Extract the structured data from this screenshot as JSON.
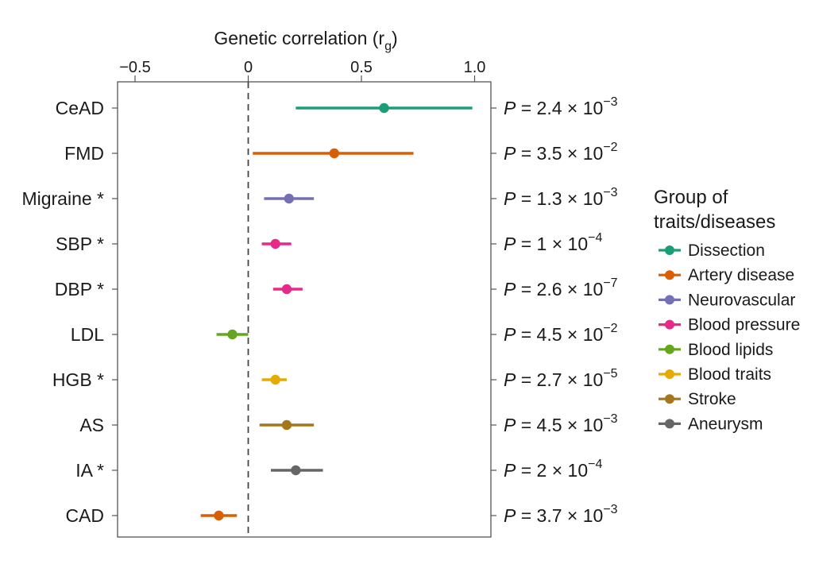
{
  "chart_data": {
    "type": "forest",
    "title": "Genetic correlation (r",
    "title_sub": "g",
    "title_close": ")",
    "xlabel": "Genetic correlation (rg)",
    "xlim": [
      -0.6,
      1.06
    ],
    "xticks": [
      {
        "value": -0.5,
        "label": "−0.5"
      },
      {
        "value": 0,
        "label": "0"
      },
      {
        "value": 0.5,
        "label": "0.5"
      },
      {
        "value": 1.0,
        "label": "1.0"
      }
    ],
    "reference_line": 0,
    "traits": [
      {
        "label": "CeAD",
        "group": "Dissection",
        "rg": 0.6,
        "lo": 0.21,
        "hi": 0.99,
        "p_mant": "2.4",
        "p_exp": "−3"
      },
      {
        "label": "FMD",
        "group": "Artery disease",
        "rg": 0.38,
        "lo": 0.02,
        "hi": 0.73,
        "p_mant": "3.5",
        "p_exp": "−2"
      },
      {
        "label": "Migraine *",
        "group": "Neurovascular",
        "rg": 0.18,
        "lo": 0.07,
        "hi": 0.29,
        "p_mant": "1.3",
        "p_exp": "−3"
      },
      {
        "label": "SBP *",
        "group": "Blood pressure",
        "rg": 0.12,
        "lo": 0.06,
        "hi": 0.19,
        "p_mant": "1",
        "p_exp": "−4"
      },
      {
        "label": "DBP *",
        "group": "Blood pressure",
        "rg": 0.17,
        "lo": 0.11,
        "hi": 0.24,
        "p_mant": "2.6",
        "p_exp": "−7"
      },
      {
        "label": "LDL",
        "group": "Blood lipids",
        "rg": -0.07,
        "lo": -0.14,
        "hi": 0.0,
        "p_mant": "4.5",
        "p_exp": "−2"
      },
      {
        "label": "HGB *",
        "group": "Blood traits",
        "rg": 0.12,
        "lo": 0.06,
        "hi": 0.17,
        "p_mant": "2.7",
        "p_exp": "−5"
      },
      {
        "label": "AS",
        "group": "Stroke",
        "rg": 0.17,
        "lo": 0.05,
        "hi": 0.29,
        "p_mant": "4.5",
        "p_exp": "−3"
      },
      {
        "label": "IA *",
        "group": "Aneurysm",
        "rg": 0.21,
        "lo": 0.1,
        "hi": 0.33,
        "p_mant": "2",
        "p_exp": "−4"
      },
      {
        "label": "CAD",
        "group": "Artery disease",
        "rg": -0.13,
        "lo": -0.21,
        "hi": -0.05,
        "p_mant": "3.7",
        "p_exp": "−3"
      }
    ],
    "legend": {
      "title_line1": "Group of",
      "title_line2": "traits/diseases",
      "placement": "right",
      "items": [
        {
          "name": "Dissection",
          "color": "#1b9e77"
        },
        {
          "name": "Artery disease",
          "color": "#d95f02"
        },
        {
          "name": "Neurovascular",
          "color": "#7570b3"
        },
        {
          "name": "Blood pressure",
          "color": "#e7298a"
        },
        {
          "name": "Blood lipids",
          "color": "#66a61e"
        },
        {
          "name": "Blood traits",
          "color": "#e6ab02"
        },
        {
          "name": "Stroke",
          "color": "#a6761d"
        },
        {
          "name": "Aneurysm",
          "color": "#666666"
        }
      ]
    },
    "p_prefix": "P",
    "p_equals": " = ",
    "p_times": " × 10"
  }
}
